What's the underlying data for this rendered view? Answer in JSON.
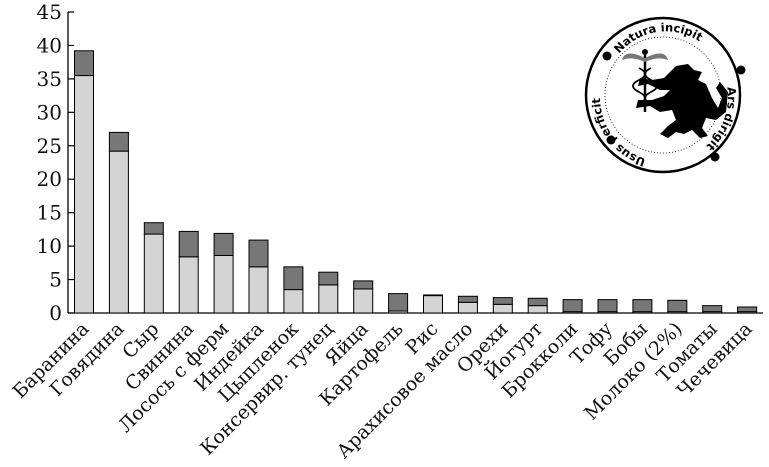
{
  "chart_data": {
    "type": "bar",
    "stacked": true,
    "categories": [
      "Баранина",
      "Говядина",
      "Сыр",
      "Свинина",
      "Лосось с ферм",
      "Индейка",
      "Цыпленок",
      "Консервир. тунец",
      "Яйца",
      "Картофель",
      "Рис",
      "Арахисовое масло",
      "Орехи",
      "Йогурт",
      "Брокколи",
      "Тофу",
      "Бобы",
      "Молоко (2%)",
      "Томаты",
      "Чечевица"
    ],
    "series": [
      {
        "color": "#d4d4d4",
        "values": [
          35.5,
          24.2,
          11.8,
          8.4,
          8.6,
          6.9,
          3.5,
          4.2,
          3.6,
          0.3,
          2.6,
          1.6,
          1.3,
          1.1,
          0.2,
          0.2,
          0.2,
          0.2,
          0.2,
          0.2
        ]
      },
      {
        "color": "#777777",
        "values": [
          3.7,
          2.8,
          1.7,
          3.8,
          3.3,
          4.0,
          3.4,
          1.9,
          1.2,
          2.6,
          0.1,
          0.9,
          1.0,
          1.1,
          1.8,
          1.8,
          1.8,
          1.7,
          0.9,
          0.7
        ]
      }
    ],
    "y_ticks": [
      0,
      5,
      10,
      15,
      20,
      25,
      30,
      35,
      40,
      45
    ],
    "ylim": [
      0,
      45
    ],
    "xlabel": "",
    "ylabel": "",
    "title": "",
    "grid": false,
    "legend": "none"
  },
  "logo": {
    "text_top": "Natura incipit",
    "text_right": "Ars dirigit",
    "text_left": "Usus perficit"
  }
}
